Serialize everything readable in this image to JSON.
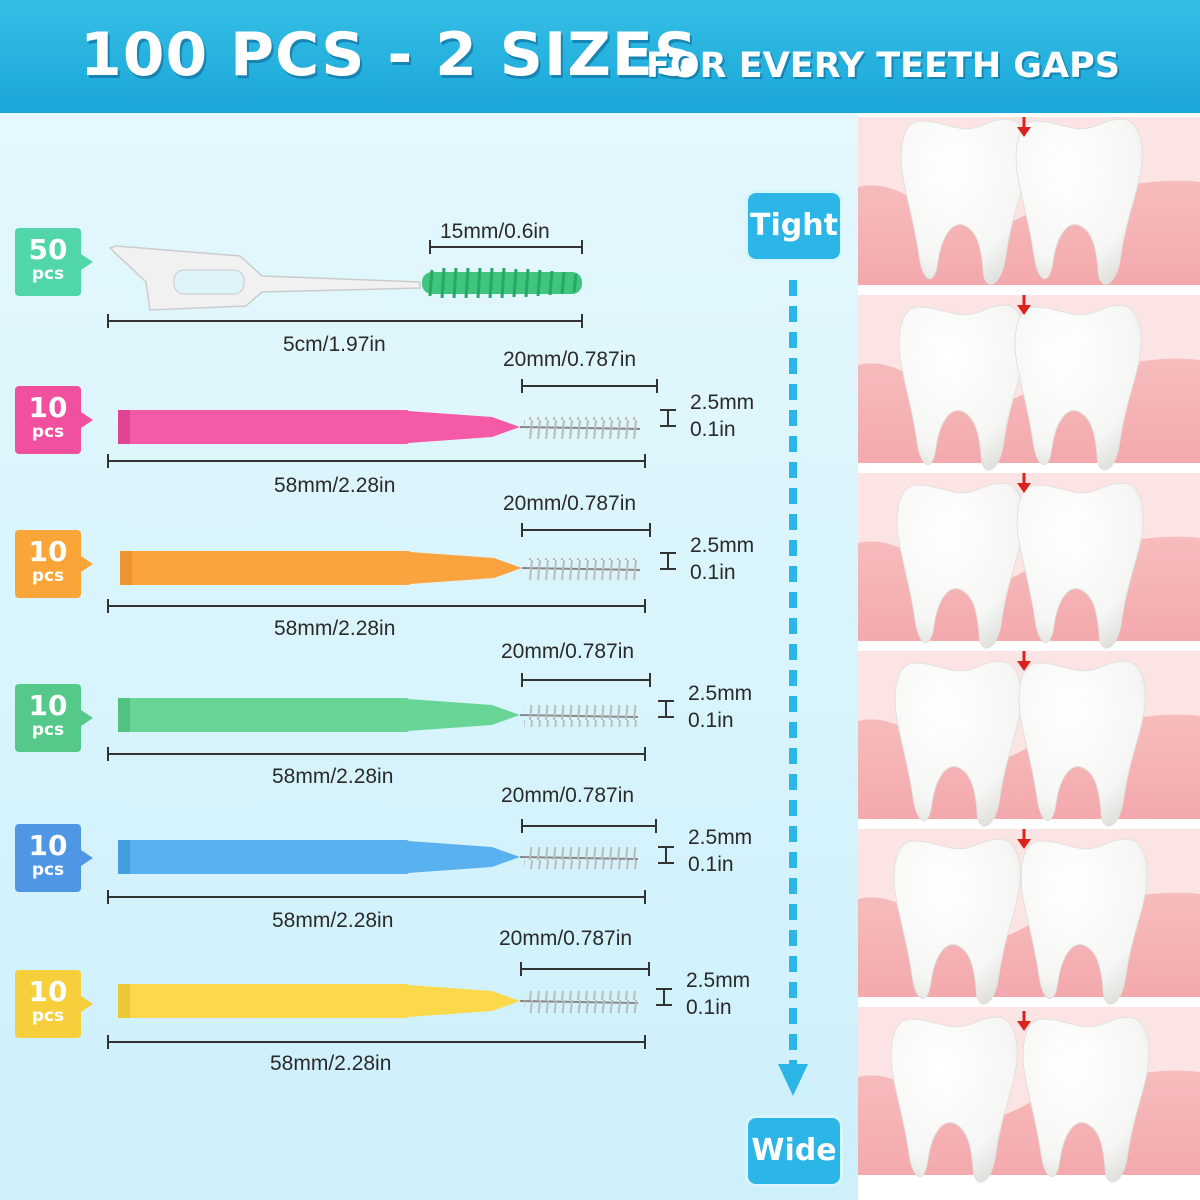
{
  "header": {
    "title_main": "100 PCS - 2 SIZES",
    "title_sub": "FOR EVERY TEETH GAPS"
  },
  "products": [
    {
      "count": "50",
      "unit": "pcs",
      "color": "#50d6a8",
      "brush_length": "15mm/0.6in",
      "total_length": "5cm/1.97in"
    },
    {
      "count": "10",
      "unit": "pcs",
      "color": "#f0509d",
      "brush_length": "20mm/0.787in",
      "diameter_mm": "2.5mm",
      "diameter_in": "0.1in",
      "total_length": "58mm/2.28in"
    },
    {
      "count": "10",
      "unit": "pcs",
      "color": "#f9a538",
      "brush_length": "20mm/0.787in",
      "diameter_mm": "2.5mm",
      "diameter_in": "0.1in",
      "total_length": "58mm/2.28in"
    },
    {
      "count": "10",
      "unit": "pcs",
      "color": "#55c98a",
      "brush_length": "20mm/0.787in",
      "diameter_mm": "2.5mm",
      "diameter_in": "0.1in",
      "total_length": "58mm/2.28in"
    },
    {
      "count": "10",
      "unit": "pcs",
      "color": "#4f97e4",
      "brush_length": "20mm/0.787in",
      "diameter_mm": "2.5mm",
      "diameter_in": "0.1in",
      "total_length": "58mm/2.28in"
    },
    {
      "count": "10",
      "unit": "pcs",
      "color": "#f7cf3c",
      "brush_length": "20mm/0.787in",
      "diameter_mm": "2.5mm",
      "diameter_in": "0.1in",
      "total_length": "58mm/2.28in"
    }
  ],
  "scale": {
    "top_label": "Tight",
    "bottom_label": "Wide",
    "color": "#2cb6e8"
  },
  "teeth_panels": 6
}
